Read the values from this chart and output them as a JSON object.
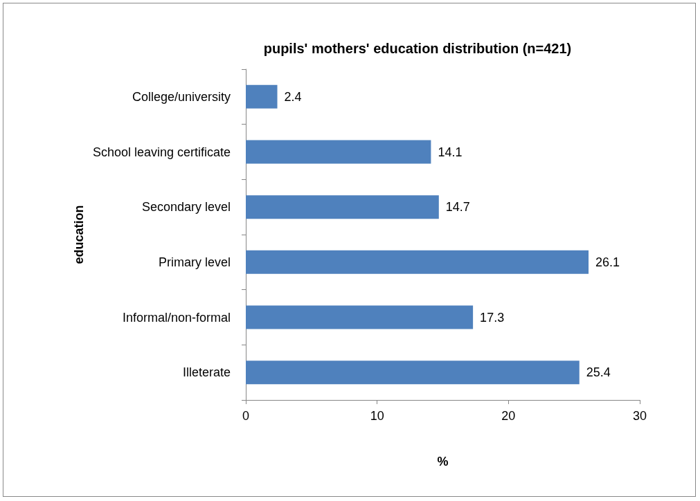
{
  "chart_data": {
    "type": "bar",
    "orientation": "horizontal",
    "title": "pupils' mothers' education distribution (n=421)",
    "xlabel": "%",
    "ylabel": "education",
    "categories": [
      "College/university",
      "School leaving certificate",
      "Secondary level",
      "Primary level",
      "Informal/non-formal",
      "Illeterate"
    ],
    "values": [
      2.4,
      14.1,
      14.7,
      26.1,
      17.3,
      25.4
    ],
    "color": "#4f81bd",
    "xlim": [
      0,
      30
    ],
    "xticks": [
      0,
      10,
      20,
      30
    ],
    "grid": false,
    "data_labels": true
  }
}
